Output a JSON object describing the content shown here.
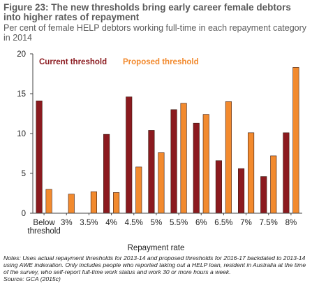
{
  "header": {
    "title": "Figure 23: The new thresholds bring early career female debtors into higher rates of repayment",
    "subtitle": "Per cent of female HELP debtors working full-time in each repayment category in 2014"
  },
  "footer": {
    "notes": "Notes: Uses actual repayment thresholds for 2013-14 and proposed thresholds for 2016-17 backdated to 2013-14 using AWE indexation. Only includes people who reported taking out a HELP loan, resident in Australia at the time of the survey, who self-report full-time work status and work 30 or more hours a week.",
    "source": "Source: GCA (2015c)"
  },
  "colors": {
    "current": "#8b1a1f",
    "proposed": "#f28a2e",
    "axis": "#444444"
  },
  "chart_data": {
    "type": "bar",
    "title": "",
    "xlabel": "Repayment rate",
    "ylabel": "",
    "ylim": [
      0,
      20
    ],
    "yticks": [
      "0",
      "5",
      "10",
      "15",
      "20"
    ],
    "grid": false,
    "legend_position": "top-left",
    "categories": [
      "Below threshold",
      "3%",
      "3.5%",
      "4%",
      "4.5%",
      "5%",
      "5.5%",
      "6%",
      "6.5%",
      "7%",
      "7.5%",
      "8%"
    ],
    "series": [
      {
        "name": "Current threshold",
        "values": [
          14.1,
          0,
          0,
          9.9,
          14.6,
          10.4,
          13.0,
          11.3,
          6.6,
          5.6,
          4.6,
          10.1
        ]
      },
      {
        "name": "Proposed threshold",
        "values": [
          3.0,
          2.4,
          2.7,
          2.6,
          5.8,
          7.6,
          13.8,
          12.4,
          14.0,
          10.1,
          7.2,
          18.3
        ]
      }
    ]
  }
}
